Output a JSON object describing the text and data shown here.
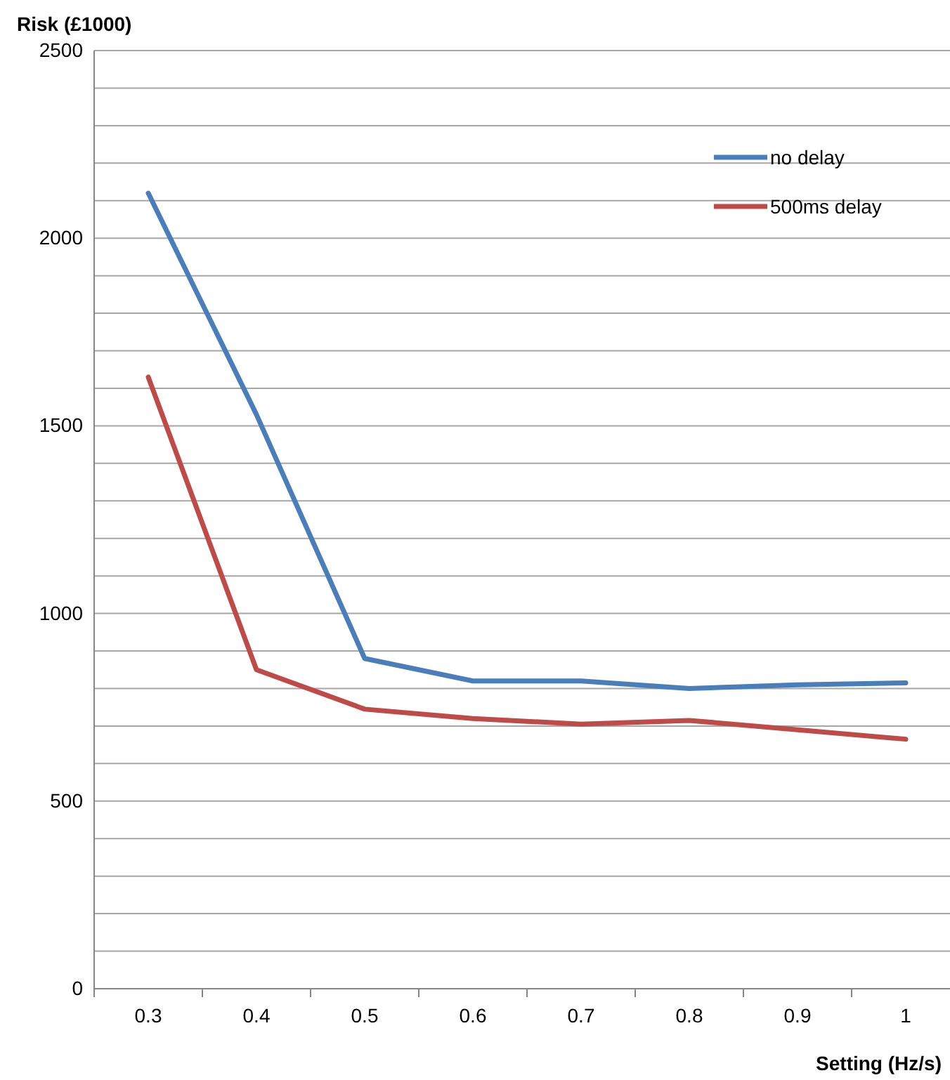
{
  "chart_data": {
    "type": "line",
    "ylabel": "Risk (£1000)",
    "xlabel": "Setting (Hz/s)",
    "categories": [
      "0.3",
      "0.4",
      "0.5",
      "0.6",
      "0.7",
      "0.8",
      "0.9",
      "1"
    ],
    "series": [
      {
        "name": "no delay",
        "color": "#4a7ebb",
        "values": [
          2120,
          1530,
          880,
          820,
          820,
          800,
          810,
          815
        ]
      },
      {
        "name": "500ms delay",
        "color": "#be4b48",
        "values": [
          1630,
          850,
          745,
          720,
          705,
          715,
          690,
          665
        ]
      }
    ],
    "ylim": [
      0,
      2500
    ],
    "yticks": [
      0,
      {
        "value": 100,
        "label": null
      },
      {
        "value": 200,
        "label": null
      },
      {
        "value": 300,
        "label": null
      },
      {
        "value": 400,
        "label": null
      },
      500,
      {
        "value": 600,
        "label": null
      },
      {
        "value": 700,
        "label": null
      },
      {
        "value": 800,
        "label": null
      },
      {
        "value": 900,
        "label": null
      },
      1000,
      {
        "value": 1100,
        "label": null
      },
      {
        "value": 1200,
        "label": null
      },
      {
        "value": 1300,
        "label": null
      },
      {
        "value": 1400,
        "label": null
      },
      1500,
      {
        "value": 1600,
        "label": null
      },
      {
        "value": 1700,
        "label": null
      },
      {
        "value": 1800,
        "label": null
      },
      {
        "value": 1900,
        "label": null
      },
      2000,
      {
        "value": 2100,
        "label": null
      },
      {
        "value": 2200,
        "label": null
      },
      {
        "value": 2300,
        "label": null
      },
      {
        "value": 2400,
        "label": null
      },
      2500
    ],
    "grid": "y",
    "legend": "top right",
    "marker": "none",
    "line_style": "solid"
  }
}
